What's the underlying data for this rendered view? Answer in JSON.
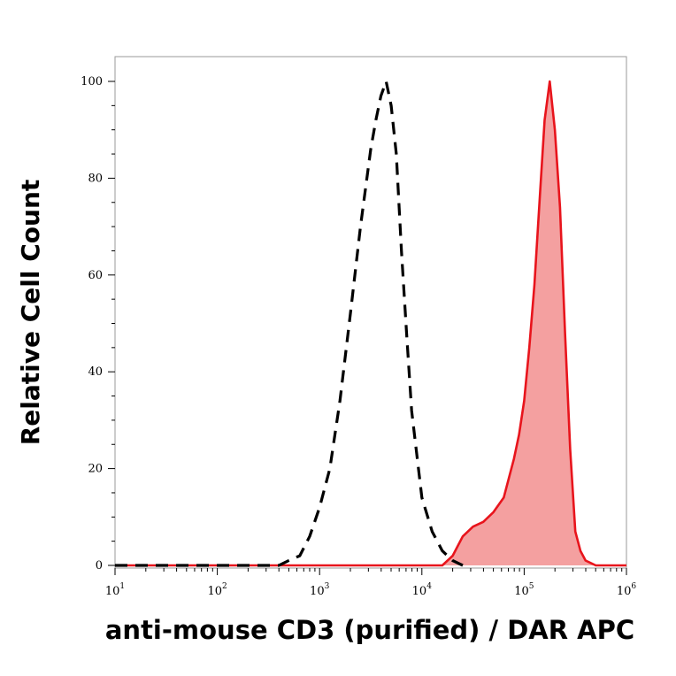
{
  "chart_data": {
    "type": "area",
    "xlabel": "anti-mouse CD3 (purified) / DAR APC",
    "ylabel": "Relative Cell Count",
    "x_scale": "log",
    "xlim": [
      10,
      1000000
    ],
    "ylim": [
      0,
      100
    ],
    "x_ticks": [
      {
        "value": 10,
        "base": "10",
        "exp": "1"
      },
      {
        "value": 100,
        "base": "10",
        "exp": "2"
      },
      {
        "value": 1000,
        "base": "10",
        "exp": "3"
      },
      {
        "value": 10000,
        "base": "10",
        "exp": "4"
      },
      {
        "value": 100000,
        "base": "10",
        "exp": "5"
      },
      {
        "value": 1000000,
        "base": "10",
        "exp": "6"
      }
    ],
    "y_ticks": [
      0,
      20,
      40,
      60,
      80,
      100
    ],
    "grid": false,
    "series": [
      {
        "style": "dashed",
        "color": "#000000",
        "fill": "none",
        "x": [
          10,
          400,
          500,
          640,
          800,
          1000,
          1260,
          1580,
          2000,
          2510,
          3160,
          3550,
          3980,
          4470,
          5010,
          5620,
          6310,
          7080,
          7940,
          10000,
          12590,
          15850,
          19950,
          25120
        ],
        "y": [
          0,
          0,
          1,
          2,
          6,
          12,
          20,
          34,
          52,
          70,
          86,
          92,
          97,
          100,
          95,
          85,
          65,
          48,
          32,
          14,
          7,
          3,
          1,
          0
        ]
      },
      {
        "style": "solid",
        "color": "#e8141c",
        "fill": "#f4a0a0",
        "x": [
          10,
          15850,
          20000,
          25120,
          31620,
          39810,
          50120,
          63100,
          79430,
          89130,
          100000,
          112200,
          125900,
          141250,
          158490,
          177830,
          199530,
          223870,
          251190,
          281840,
          316230,
          354810,
          398110,
          501190,
          630960,
          1000000
        ],
        "y": [
          0,
          0,
          2,
          6,
          8,
          9,
          11,
          14,
          22,
          27,
          34,
          45,
          58,
          75,
          92,
          100,
          90,
          74,
          48,
          24,
          7,
          3,
          1,
          0,
          0,
          0
        ]
      }
    ]
  }
}
